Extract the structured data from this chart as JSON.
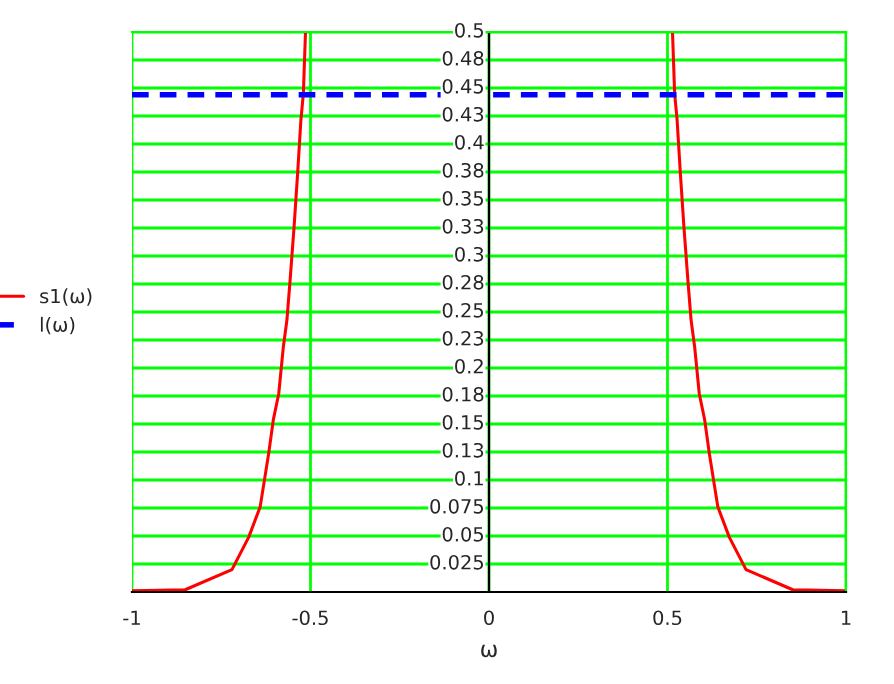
{
  "chart_data": {
    "type": "line",
    "xlabel": "ω",
    "series": [
      {
        "name": "s1(ω)",
        "color": "#ff0000",
        "line_style": "solid",
        "x": [
          -1,
          -0.851,
          -0.72,
          -0.673,
          -0.641,
          -0.617,
          -0.604,
          -0.589,
          -0.576,
          -0.566,
          -0.557,
          -0.546,
          -0.536,
          -0.527,
          -0.52,
          -0.514,
          0,
          0.514,
          0.52,
          0.527,
          0.536,
          0.546,
          0.557,
          0.566,
          0.576,
          0.589,
          0.604,
          0.617,
          0.641,
          0.673,
          0.72,
          0.851,
          1
        ],
        "values": [
          0.001,
          0.002,
          0.02,
          0.049,
          0.076,
          0.124,
          0.154,
          0.177,
          0.219,
          0.243,
          0.279,
          0.326,
          0.374,
          0.421,
          0.445,
          0.5,
          null,
          0.5,
          0.445,
          0.421,
          0.374,
          0.326,
          0.279,
          0.243,
          0.219,
          0.177,
          0.154,
          0.124,
          0.076,
          0.049,
          0.02,
          0.002,
          0.001
        ]
      },
      {
        "name": "l(ω)",
        "color": "#0000ff",
        "line_style": "dashed",
        "x": [
          -1,
          1
        ],
        "values": [
          0.444,
          0.444
        ]
      }
    ],
    "xlim": [
      -1,
      1
    ],
    "xticks": [
      -1,
      -0.5,
      0,
      0.5,
      1
    ],
    "ylim": [
      0,
      0.5
    ],
    "yticks": [
      {
        "value": 0.025,
        "label": "0.025"
      },
      {
        "value": 0.05,
        "label": "0.05"
      },
      {
        "value": 0.075,
        "label": "0.075"
      },
      {
        "value": 0.1,
        "label": "0.1"
      },
      {
        "value": 0.125,
        "label": "0.13"
      },
      {
        "value": 0.15,
        "label": "0.15"
      },
      {
        "value": 0.175,
        "label": "0.18"
      },
      {
        "value": 0.2,
        "label": "0.2"
      },
      {
        "value": 0.225,
        "label": "0.23"
      },
      {
        "value": 0.25,
        "label": "0.25"
      },
      {
        "value": 0.275,
        "label": "0.28"
      },
      {
        "value": 0.3,
        "label": "0.3"
      },
      {
        "value": 0.325,
        "label": "0.33"
      },
      {
        "value": 0.35,
        "label": "0.35"
      },
      {
        "value": 0.375,
        "label": "0.38"
      },
      {
        "value": 0.4,
        "label": "0.4"
      },
      {
        "value": 0.425,
        "label": "0.43"
      },
      {
        "value": 0.45,
        "label": "0.45"
      },
      {
        "value": 0.475,
        "label": "0.48"
      },
      {
        "value": 0.5,
        "label": "0.5"
      }
    ],
    "grid": true,
    "legend": "left",
    "marker": "none"
  }
}
